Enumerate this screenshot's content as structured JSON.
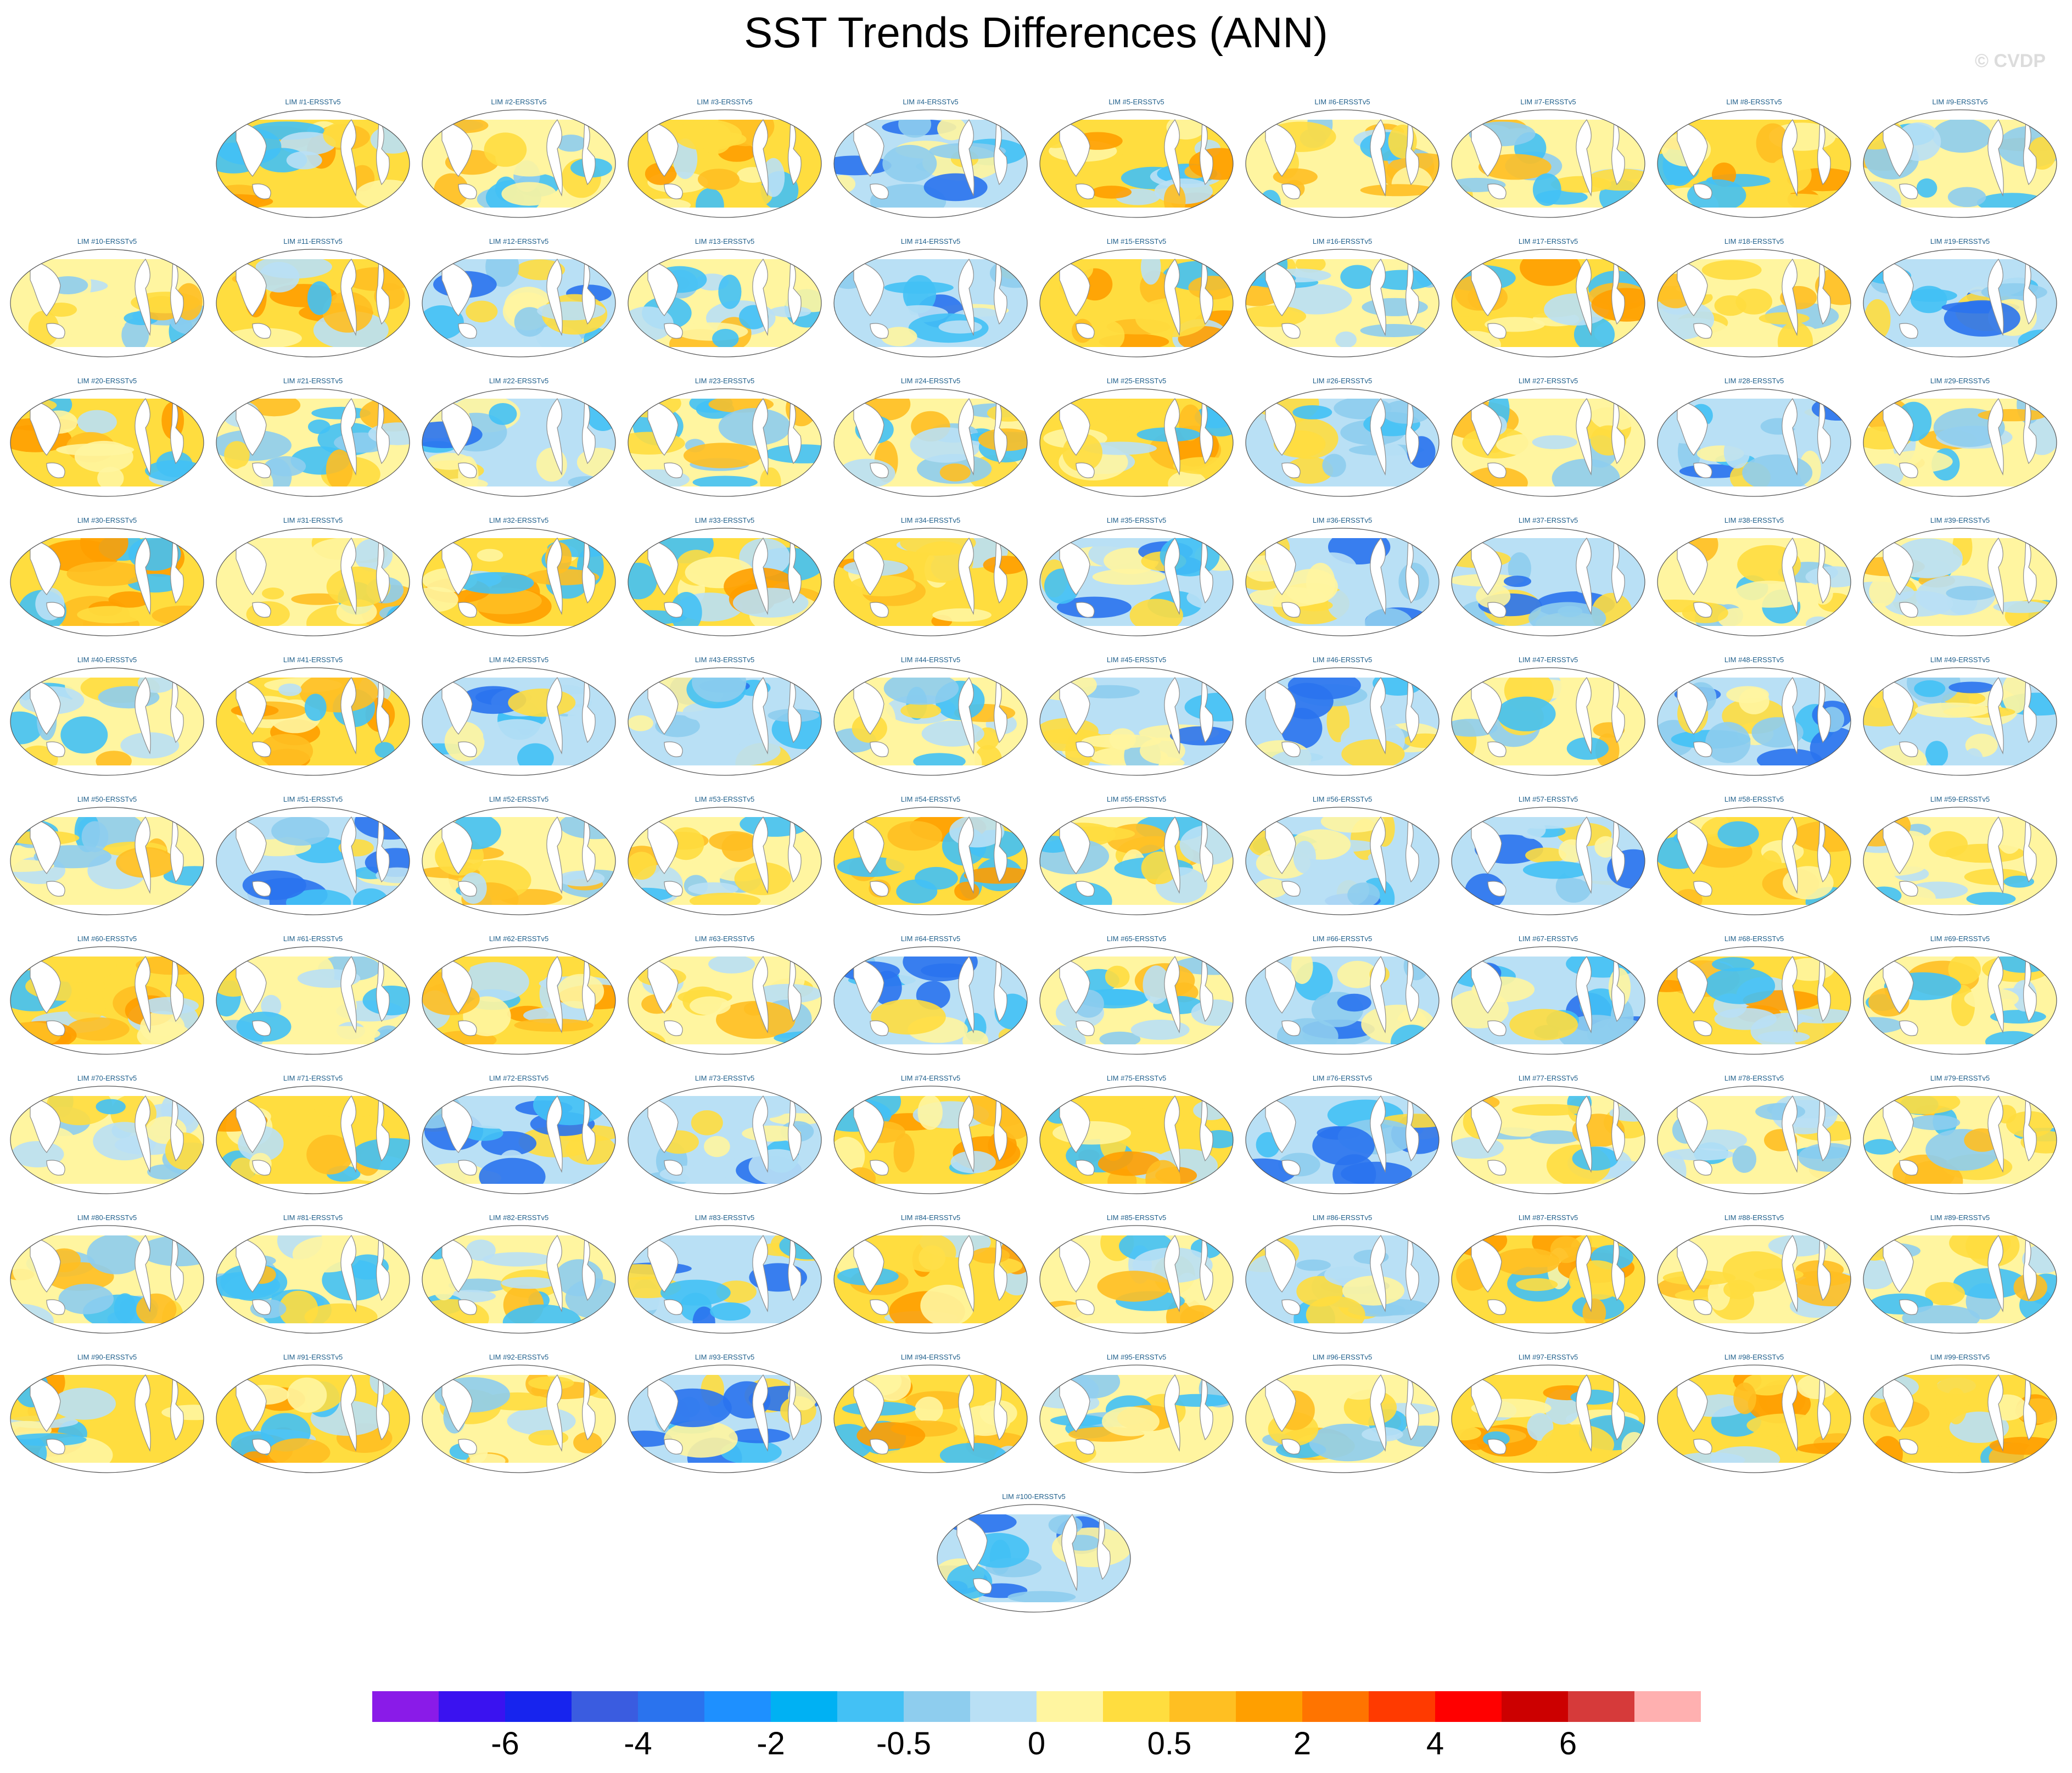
{
  "title": "SST Trends Differences (ANN)",
  "credit": "© CVDP",
  "panel_suffix": "-ERSSTv5",
  "panel_count": 100,
  "panels": [
    {
      "label": "LIM #1-ERSSTv5",
      "tone": "warm"
    },
    {
      "label": "LIM #2-ERSSTv5",
      "tone": "neutral"
    },
    {
      "label": "LIM #3-ERSSTv5",
      "tone": "warm"
    },
    {
      "label": "LIM #4-ERSSTv5",
      "tone": "cool"
    },
    {
      "label": "LIM #5-ERSSTv5",
      "tone": "warm"
    },
    {
      "label": "LIM #6-ERSSTv5",
      "tone": "neutral"
    },
    {
      "label": "LIM #7-ERSSTv5",
      "tone": "neutral"
    },
    {
      "label": "LIM #8-ERSSTv5",
      "tone": "warm"
    },
    {
      "label": "LIM #9-ERSSTv5",
      "tone": "neutral"
    },
    {
      "label": "LIM #10-ERSSTv5",
      "tone": "neutral"
    },
    {
      "label": "LIM #11-ERSSTv5",
      "tone": "warm"
    },
    {
      "label": "LIM #12-ERSSTv5",
      "tone": "cool"
    },
    {
      "label": "LIM #13-ERSSTv5",
      "tone": "neutral"
    },
    {
      "label": "LIM #14-ERSSTv5",
      "tone": "cool"
    },
    {
      "label": "LIM #15-ERSSTv5",
      "tone": "warm"
    },
    {
      "label": "LIM #16-ERSSTv5",
      "tone": "neutral"
    },
    {
      "label": "LIM #17-ERSSTv5",
      "tone": "warm"
    },
    {
      "label": "LIM #18-ERSSTv5",
      "tone": "neutral"
    },
    {
      "label": "LIM #19-ERSSTv5",
      "tone": "cool"
    },
    {
      "label": "LIM #20-ERSSTv5",
      "tone": "warm"
    },
    {
      "label": "LIM #21-ERSSTv5",
      "tone": "neutral"
    },
    {
      "label": "LIM #22-ERSSTv5",
      "tone": "cool"
    },
    {
      "label": "LIM #23-ERSSTv5",
      "tone": "neutral"
    },
    {
      "label": "LIM #24-ERSSTv5",
      "tone": "neutral"
    },
    {
      "label": "LIM #25-ERSSTv5",
      "tone": "warm"
    },
    {
      "label": "LIM #26-ERSSTv5",
      "tone": "cool"
    },
    {
      "label": "LIM #27-ERSSTv5",
      "tone": "neutral"
    },
    {
      "label": "LIM #28-ERSSTv5",
      "tone": "cool"
    },
    {
      "label": "LIM #29-ERSSTv5",
      "tone": "neutral"
    },
    {
      "label": "LIM #30-ERSSTv5",
      "tone": "warm"
    },
    {
      "label": "LIM #31-ERSSTv5",
      "tone": "neutral"
    },
    {
      "label": "LIM #32-ERSSTv5",
      "tone": "warm"
    },
    {
      "label": "LIM #33-ERSSTv5",
      "tone": "warm"
    },
    {
      "label": "LIM #34-ERSSTv5",
      "tone": "warm"
    },
    {
      "label": "LIM #35-ERSSTv5",
      "tone": "cool"
    },
    {
      "label": "LIM #36-ERSSTv5",
      "tone": "cool"
    },
    {
      "label": "LIM #37-ERSSTv5",
      "tone": "cool"
    },
    {
      "label": "LIM #38-ERSSTv5",
      "tone": "neutral"
    },
    {
      "label": "LIM #39-ERSSTv5",
      "tone": "neutral"
    },
    {
      "label": "LIM #40-ERSSTv5",
      "tone": "neutral"
    },
    {
      "label": "LIM #41-ERSSTv5",
      "tone": "warm"
    },
    {
      "label": "LIM #42-ERSSTv5",
      "tone": "cool"
    },
    {
      "label": "LIM #43-ERSSTv5",
      "tone": "cool"
    },
    {
      "label": "LIM #44-ERSSTv5",
      "tone": "neutral"
    },
    {
      "label": "LIM #45-ERSSTv5",
      "tone": "cool"
    },
    {
      "label": "LIM #46-ERSSTv5",
      "tone": "cool"
    },
    {
      "label": "LIM #47-ERSSTv5",
      "tone": "neutral"
    },
    {
      "label": "LIM #48-ERSSTv5",
      "tone": "cool"
    },
    {
      "label": "LIM #49-ERSSTv5",
      "tone": "cool"
    },
    {
      "label": "LIM #50-ERSSTv5",
      "tone": "neutral"
    },
    {
      "label": "LIM #51-ERSSTv5",
      "tone": "cool"
    },
    {
      "label": "LIM #52-ERSSTv5",
      "tone": "neutral"
    },
    {
      "label": "LIM #53-ERSSTv5",
      "tone": "neutral"
    },
    {
      "label": "LIM #54-ERSSTv5",
      "tone": "warm"
    },
    {
      "label": "LIM #55-ERSSTv5",
      "tone": "neutral"
    },
    {
      "label": "LIM #56-ERSSTv5",
      "tone": "cool"
    },
    {
      "label": "LIM #57-ERSSTv5",
      "tone": "cool"
    },
    {
      "label": "LIM #58-ERSSTv5",
      "tone": "warm"
    },
    {
      "label": "LIM #59-ERSSTv5",
      "tone": "neutral"
    },
    {
      "label": "LIM #60-ERSSTv5",
      "tone": "warm"
    },
    {
      "label": "LIM #61-ERSSTv5",
      "tone": "neutral"
    },
    {
      "label": "LIM #62-ERSSTv5",
      "tone": "warm"
    },
    {
      "label": "LIM #63-ERSSTv5",
      "tone": "neutral"
    },
    {
      "label": "LIM #64-ERSSTv5",
      "tone": "cool"
    },
    {
      "label": "LIM #65-ERSSTv5",
      "tone": "neutral"
    },
    {
      "label": "LIM #66-ERSSTv5",
      "tone": "cool"
    },
    {
      "label": "LIM #67-ERSSTv5",
      "tone": "cool"
    },
    {
      "label": "LIM #68-ERSSTv5",
      "tone": "warm"
    },
    {
      "label": "LIM #69-ERSSTv5",
      "tone": "neutral"
    },
    {
      "label": "LIM #70-ERSSTv5",
      "tone": "neutral"
    },
    {
      "label": "LIM #71-ERSSTv5",
      "tone": "warm"
    },
    {
      "label": "LIM #72-ERSSTv5",
      "tone": "cool"
    },
    {
      "label": "LIM #73-ERSSTv5",
      "tone": "cool"
    },
    {
      "label": "LIM #74-ERSSTv5",
      "tone": "warm"
    },
    {
      "label": "LIM #75-ERSSTv5",
      "tone": "warm"
    },
    {
      "label": "LIM #76-ERSSTv5",
      "tone": "cool"
    },
    {
      "label": "LIM #77-ERSSTv5",
      "tone": "neutral"
    },
    {
      "label": "LIM #78-ERSSTv5",
      "tone": "neutral"
    },
    {
      "label": "LIM #79-ERSSTv5",
      "tone": "neutral"
    },
    {
      "label": "LIM #80-ERSSTv5",
      "tone": "neutral"
    },
    {
      "label": "LIM #81-ERSSTv5",
      "tone": "neutral"
    },
    {
      "label": "LIM #82-ERSSTv5",
      "tone": "neutral"
    },
    {
      "label": "LIM #83-ERSSTv5",
      "tone": "cool"
    },
    {
      "label": "LIM #84-ERSSTv5",
      "tone": "warm"
    },
    {
      "label": "LIM #85-ERSSTv5",
      "tone": "neutral"
    },
    {
      "label": "LIM #86-ERSSTv5",
      "tone": "cool"
    },
    {
      "label": "LIM #87-ERSSTv5",
      "tone": "warm"
    },
    {
      "label": "LIM #88-ERSSTv5",
      "tone": "neutral"
    },
    {
      "label": "LIM #89-ERSSTv5",
      "tone": "neutral"
    },
    {
      "label": "LIM #90-ERSSTv5",
      "tone": "warm"
    },
    {
      "label": "LIM #91-ERSSTv5",
      "tone": "warm"
    },
    {
      "label": "LIM #92-ERSSTv5",
      "tone": "neutral"
    },
    {
      "label": "LIM #93-ERSSTv5",
      "tone": "cool"
    },
    {
      "label": "LIM #94-ERSSTv5",
      "tone": "warm"
    },
    {
      "label": "LIM #95-ERSSTv5",
      "tone": "neutral"
    },
    {
      "label": "LIM #96-ERSSTv5",
      "tone": "neutral"
    },
    {
      "label": "LIM #97-ERSSTv5",
      "tone": "warm"
    },
    {
      "label": "LIM #98-ERSSTv5",
      "tone": "warm"
    },
    {
      "label": "LIM #99-ERSSTv5",
      "tone": "warm"
    },
    {
      "label": "LIM #100-ERSSTv5",
      "tone": "cool"
    }
  ],
  "colorbar": {
    "colors": [
      "#8a1be8",
      "#3a12f0",
      "#1724ee",
      "#3a5ce0",
      "#2a73ee",
      "#1e90ff",
      "#00b1f3",
      "#43c1f5",
      "#8ecdee",
      "#b9e0f5",
      "#fff5a0",
      "#ffdd3f",
      "#ffbf22",
      "#ff9f00",
      "#ff7400",
      "#ff3a00",
      "#ff0000",
      "#cc0000",
      "#d63a3a",
      "#ffb0b0"
    ],
    "tick_labels": [
      "-6",
      "-4",
      "-2",
      "-0.5",
      "0",
      "0.5",
      "2",
      "4",
      "6"
    ],
    "tick_after_box": [
      2,
      4,
      6,
      8,
      10,
      12,
      14,
      16,
      18
    ]
  },
  "palette": {
    "ocean_cool": "#b9e0f5",
    "ocean_cool2": "#8ecdee",
    "ocean_blue": "#43c1f5",
    "ocean_deep": "#2a73ee",
    "ocean_warm": "#ffdd3f",
    "ocean_warm2": "#ffbf22",
    "ocean_orange": "#ff9f00",
    "ocean_pale": "#fff5a0",
    "label_color": "#1f5f8b",
    "land_line": "#8c8c8c"
  }
}
